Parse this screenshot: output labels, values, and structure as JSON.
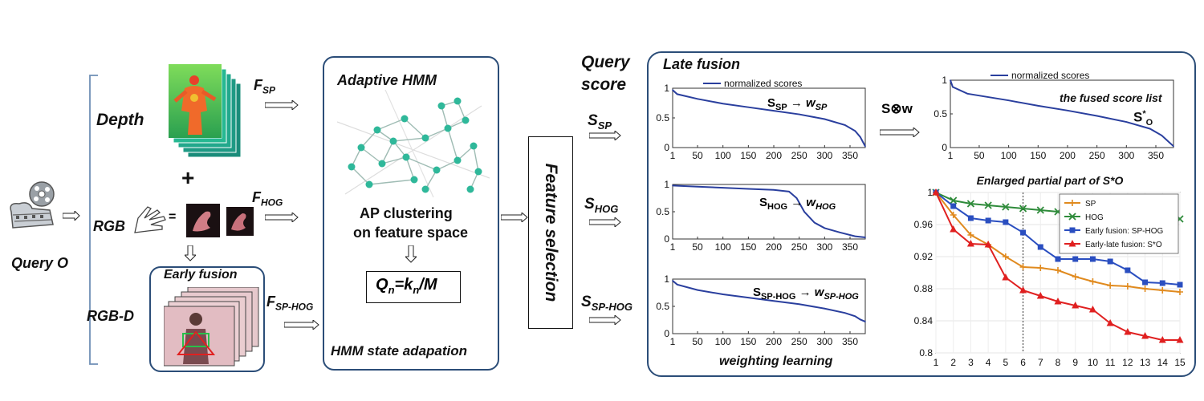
{
  "left": {
    "query": "Query O",
    "depth": "Depth",
    "rgb": "RGB",
    "rgbd": "RGB-D",
    "plus": "+",
    "equals": "=",
    "early_fusion": "Early fusion"
  },
  "features": {
    "sp": {
      "base": "F",
      "sub": "SP"
    },
    "hog": {
      "base": "F",
      "sub": "HOG"
    },
    "sphog": {
      "base": "F",
      "sub": "SP-HOG"
    }
  },
  "hmm_box": {
    "title": "Adaptive HMM",
    "clustering_line1": "AP clustering",
    "clustering_line2": "on feature space",
    "formula_parts": {
      "q": "Q",
      "n": "n",
      "eq": "=k",
      "n2": "n",
      "m": "/M"
    },
    "footer": "HMM state adapation"
  },
  "feature_selection": "Feature selection",
  "query_score_line1": "Query",
  "query_score_line2": "score",
  "scores": {
    "sp": {
      "base": "S",
      "sub": "SP"
    },
    "hog": {
      "base": "S",
      "sub": "HOG"
    },
    "sphog": {
      "base": "S",
      "sub": "SP-HOG"
    }
  },
  "late_fusion": {
    "title": "Late fusion",
    "weighting": "weighting learning",
    "fuse_op": "S⊗w",
    "fused_label": "the fused score list",
    "so_base": "S",
    "so_sup": "*",
    "so_sub": "O",
    "legend": "normalized scores",
    "mappings": [
      {
        "s": "S",
        "s_sub": "SP",
        "w": "w",
        "w_sub": "SP"
      },
      {
        "s": "S",
        "s_sub": "HOG",
        "w": "w",
        "w_sub": "HOG"
      },
      {
        "s": "S",
        "s_sub": "SP-HOG",
        "w": "w",
        "w_sub": "SP-HOG"
      }
    ]
  },
  "colors": {
    "box_border": "#2b4d78",
    "score_line": "#2a3f9e",
    "node": "#2fb89a",
    "sp": "#e08a1e",
    "hog": "#2e8b3a",
    "early": "#2a4ec0",
    "late": "#e02020"
  },
  "chart_data": [
    {
      "type": "line",
      "legend": [
        "normalized scores"
      ],
      "x_ticks": [
        1,
        50,
        100,
        150,
        200,
        250,
        300,
        350
      ],
      "y_ticks": [
        0,
        0.5,
        1
      ],
      "xlim": [
        1,
        380
      ],
      "ylim": [
        0,
        1
      ],
      "series": [
        {
          "name": "normalized scores",
          "x": [
            1,
            10,
            50,
            100,
            150,
            200,
            250,
            300,
            340,
            360,
            370,
            380
          ],
          "y": [
            0.97,
            0.9,
            0.82,
            0.74,
            0.68,
            0.62,
            0.56,
            0.48,
            0.38,
            0.28,
            0.18,
            0.02
          ]
        }
      ]
    },
    {
      "type": "line",
      "x_ticks": [
        1,
        50,
        100,
        150,
        200,
        250,
        300,
        350
      ],
      "y_ticks": [
        0,
        0.5,
        1
      ],
      "xlim": [
        1,
        380
      ],
      "ylim": [
        0,
        1
      ],
      "series": [
        {
          "x": [
            1,
            50,
            100,
            150,
            200,
            230,
            245,
            260,
            280,
            300,
            330,
            360,
            380
          ],
          "y": [
            0.98,
            0.96,
            0.94,
            0.92,
            0.9,
            0.87,
            0.75,
            0.5,
            0.3,
            0.2,
            0.12,
            0.05,
            0.03
          ]
        }
      ]
    },
    {
      "type": "line",
      "x_ticks": [
        1,
        50,
        100,
        150,
        200,
        250,
        300,
        350
      ],
      "y_ticks": [
        0,
        0.5,
        1
      ],
      "xlim": [
        1,
        380
      ],
      "ylim": [
        0,
        1
      ],
      "series": [
        {
          "x": [
            1,
            10,
            50,
            100,
            150,
            200,
            250,
            300,
            340,
            360,
            370,
            380
          ],
          "y": [
            0.97,
            0.9,
            0.8,
            0.72,
            0.66,
            0.6,
            0.54,
            0.46,
            0.38,
            0.32,
            0.26,
            0.22
          ]
        }
      ]
    },
    {
      "type": "line",
      "legend": [
        "normalized scores"
      ],
      "x_ticks": [
        1,
        50,
        100,
        150,
        200,
        250,
        300,
        350
      ],
      "y_ticks": [
        0,
        0.5,
        1
      ],
      "xlim": [
        1,
        380
      ],
      "ylim": [
        0,
        1
      ],
      "series": [
        {
          "name": "normalized scores",
          "x": [
            1,
            5,
            30,
            100,
            150,
            200,
            250,
            300,
            340,
            360,
            370,
            380
          ],
          "y": [
            1.0,
            0.9,
            0.8,
            0.7,
            0.62,
            0.55,
            0.47,
            0.38,
            0.28,
            0.18,
            0.1,
            0.02
          ]
        }
      ]
    },
    {
      "type": "line",
      "title": "Enlarged partial part of S*O",
      "x_ticks": [
        1,
        2,
        3,
        4,
        5,
        6,
        7,
        8,
        9,
        10,
        11,
        12,
        13,
        14,
        15
      ],
      "y_ticks": [
        0.8,
        0.84,
        0.88,
        0.92,
        0.96,
        1
      ],
      "xlim": [
        1,
        15
      ],
      "ylim": [
        0.8,
        1
      ],
      "grid": true,
      "vline_x": 6,
      "legend_placement": "top-right",
      "series": [
        {
          "name": "SP",
          "marker": "+",
          "x": [
            1,
            2,
            3,
            4,
            5,
            6,
            7,
            8,
            9,
            10,
            11,
            12,
            13,
            14,
            15
          ],
          "y": [
            1.0,
            0.972,
            0.947,
            0.935,
            0.92,
            0.907,
            0.906,
            0.903,
            0.895,
            0.889,
            0.884,
            0.883,
            0.88,
            0.878,
            0.876
          ]
        },
        {
          "name": "HOG",
          "marker": "x",
          "x": [
            1,
            2,
            3,
            4,
            5,
            6,
            7,
            8,
            9,
            10,
            11,
            12,
            13,
            14,
            15
          ],
          "y": [
            1.0,
            0.99,
            0.986,
            0.984,
            0.982,
            0.98,
            0.978,
            0.976,
            0.975,
            0.973,
            0.972,
            0.971,
            0.97,
            0.968,
            0.967
          ]
        },
        {
          "name": "Early fusion: SP-HOG",
          "marker": "s",
          "x": [
            1,
            2,
            3,
            4,
            5,
            6,
            7,
            8,
            9,
            10,
            11,
            12,
            13,
            14,
            15
          ],
          "y": [
            1.0,
            0.983,
            0.968,
            0.965,
            0.963,
            0.95,
            0.932,
            0.917,
            0.917,
            0.917,
            0.914,
            0.903,
            0.888,
            0.887,
            0.885
          ]
        },
        {
          "name": "Early-late fusion:  S*O",
          "marker": "^",
          "x": [
            1,
            2,
            3,
            4,
            5,
            6,
            7,
            8,
            9,
            10,
            11,
            12,
            13,
            14,
            15
          ],
          "y": [
            1.0,
            0.954,
            0.936,
            0.935,
            0.894,
            0.878,
            0.871,
            0.864,
            0.859,
            0.854,
            0.837,
            0.826,
            0.821,
            0.816,
            0.816
          ]
        }
      ]
    }
  ]
}
